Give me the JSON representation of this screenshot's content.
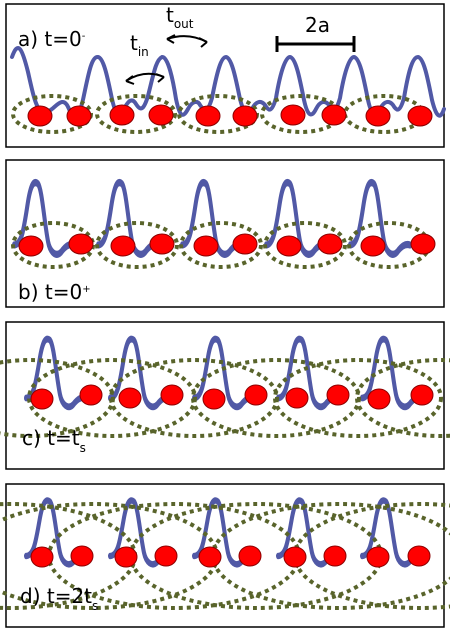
{
  "figure": {
    "panels": [
      {
        "id": "a",
        "label_prefix": "a) t=0",
        "label_super": "-",
        "annotation": {
          "t_in": "t",
          "t_in_sub": "in",
          "t_out": "t",
          "t_out_sub": "out",
          "length_label": "2a"
        }
      },
      {
        "id": "b",
        "label_prefix": "b) t=0",
        "label_super": "+"
      },
      {
        "id": "c",
        "label_prefix": "c) t=t",
        "label_sub": "s"
      },
      {
        "id": "d",
        "label_prefix": "d) t=2t",
        "label_sub": "s"
      }
    ]
  }
}
